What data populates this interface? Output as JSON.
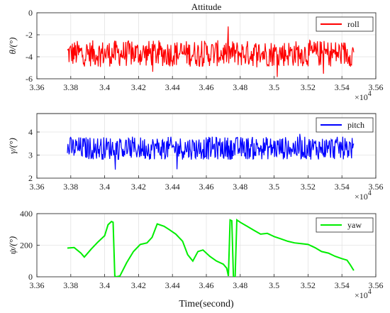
{
  "chart_data": [
    {
      "type": "line",
      "title": "Attitude",
      "ylabel": "θ/(°)",
      "xlabel": "",
      "x_exponent": "×10",
      "x_exponent_power": "4",
      "xlim": [
        3.36,
        3.56
      ],
      "ylim": [
        -6,
        0
      ],
      "xticks": [
        "3.36",
        "3.38",
        "3.4",
        "3.42",
        "3.44",
        "3.46",
        "3.48",
        "3.5",
        "3.52",
        "3.54",
        "3.56"
      ],
      "yticks": [
        "-6",
        "-4",
        "-2",
        "0"
      ],
      "grid": true,
      "legend_position": "top-right",
      "series": [
        {
          "name": "roll",
          "color": "#ff0000",
          "x_range": [
            3.378,
            3.547
          ],
          "mean": -3.7,
          "amplitude": 1.2,
          "noise": true
        }
      ]
    },
    {
      "type": "line",
      "title": "",
      "ylabel": "γ/(°)",
      "xlabel": "",
      "x_exponent": "×10",
      "x_exponent_power": "4",
      "xlim": [
        3.36,
        3.56
      ],
      "ylim": [
        2,
        4.8
      ],
      "xticks": [
        "3.36",
        "3.38",
        "3.4",
        "3.42",
        "3.44",
        "3.46",
        "3.48",
        "3.5",
        "3.52",
        "3.54",
        "3.56"
      ],
      "yticks": [
        "2",
        "3",
        "4"
      ],
      "grid": true,
      "legend_position": "top-right",
      "series": [
        {
          "name": "pitch",
          "color": "#0000ff",
          "x_range": [
            3.378,
            3.547
          ],
          "mean": 3.3,
          "amplitude": 0.5,
          "noise": true
        }
      ]
    },
    {
      "type": "line",
      "title": "",
      "ylabel": "ψ/(°)",
      "xlabel": "Time(second)",
      "x_exponent": "×10",
      "x_exponent_power": "4",
      "xlim": [
        3.36,
        3.56
      ],
      "ylim": [
        0,
        400
      ],
      "xticks": [
        "3.36",
        "3.38",
        "3.4",
        "3.42",
        "3.44",
        "3.46",
        "3.48",
        "3.5",
        "3.52",
        "3.54",
        "3.56"
      ],
      "yticks": [
        "0",
        "200",
        "400"
      ],
      "grid": true,
      "legend_position": "top-right",
      "series": [
        {
          "name": "yaw",
          "color": "#00ee00",
          "x": [
            3.378,
            3.382,
            3.386,
            3.388,
            3.392,
            3.396,
            3.4,
            3.402,
            3.404,
            3.405,
            3.406,
            3.407,
            3.409,
            3.413,
            3.417,
            3.421,
            3.425,
            3.428,
            3.431,
            3.435,
            3.438,
            3.442,
            3.446,
            3.449,
            3.452,
            3.455,
            3.458,
            3.462,
            3.466,
            3.47,
            3.472,
            3.473,
            3.474,
            3.475,
            3.476,
            3.477,
            3.478,
            3.48,
            3.484,
            3.488,
            3.492,
            3.496,
            3.5,
            3.504,
            3.508,
            3.512,
            3.516,
            3.52,
            3.524,
            3.528,
            3.532,
            3.536,
            3.54,
            3.543,
            3.545,
            3.547
          ],
          "y": [
            182,
            185,
            150,
            125,
            175,
            220,
            260,
            330,
            350,
            345,
            5,
            0,
            5,
            90,
            160,
            205,
            215,
            250,
            335,
            320,
            300,
            270,
            225,
            140,
            100,
            160,
            170,
            130,
            100,
            80,
            55,
            5,
            360,
            355,
            0,
            0,
            360,
            345,
            320,
            295,
            270,
            275,
            255,
            240,
            225,
            215,
            210,
            205,
            185,
            160,
            150,
            130,
            115,
            105,
            75,
            40
          ]
        }
      ]
    }
  ]
}
